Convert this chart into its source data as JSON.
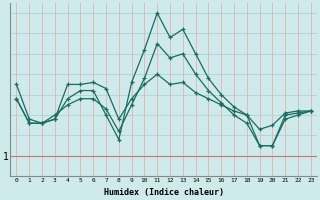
{
  "xlabel": "Humidex (Indice chaleur)",
  "bg_color": "#ceeaea",
  "line_color": "#1a6b60",
  "vgrid_color": "#e8b0b0",
  "hgrid_color": "#a8cece",
  "hline_color": "#cc7777",
  "hline_y": 1,
  "xlim": [
    -0.5,
    23.5
  ],
  "ylim": [
    0,
    8.5
  ],
  "xtick_labels": [
    "0",
    "1",
    "2",
    "3",
    "4",
    "5",
    "6",
    "7",
    "8",
    "9",
    "10",
    "11",
    "12",
    "13",
    "14",
    "15",
    "16",
    "17",
    "18",
    "19",
    "20",
    "21",
    "22",
    "23"
  ],
  "series1_x": [
    0,
    1,
    2,
    3,
    4,
    5,
    6,
    7,
    8,
    9,
    10,
    11,
    12,
    13,
    14,
    15,
    16,
    17,
    18,
    19,
    20,
    21,
    22,
    23
  ],
  "series1_y": [
    3.8,
    2.6,
    2.6,
    2.8,
    4.5,
    4.5,
    4.6,
    4.3,
    2.8,
    3.8,
    4.5,
    5.0,
    4.5,
    4.6,
    4.1,
    3.8,
    3.5,
    3.2,
    3.0,
    2.3,
    2.5,
    3.1,
    3.2,
    3.2
  ],
  "series2_x": [
    0,
    1,
    2,
    3,
    4,
    5,
    6,
    7,
    8,
    9,
    10,
    11,
    12,
    13,
    14,
    15,
    16,
    17,
    18,
    19,
    20,
    21,
    22,
    23
  ],
  "series2_y": [
    3.8,
    2.6,
    2.6,
    2.8,
    3.8,
    4.2,
    4.2,
    3.0,
    1.8,
    4.6,
    6.2,
    8.0,
    6.8,
    7.2,
    6.0,
    4.8,
    4.0,
    3.4,
    3.0,
    1.5,
    1.5,
    3.0,
    3.1,
    3.2
  ],
  "series3_x": [
    0,
    1,
    2,
    3,
    4,
    5,
    6,
    7,
    8,
    9,
    10,
    11,
    12,
    13,
    14,
    15,
    16,
    17,
    18,
    19,
    20,
    21,
    22,
    23
  ],
  "series3_y": [
    4.5,
    2.8,
    2.6,
    3.0,
    3.5,
    3.8,
    3.8,
    3.3,
    2.2,
    3.5,
    4.8,
    6.5,
    5.8,
    6.0,
    5.0,
    4.2,
    3.6,
    3.0,
    2.6,
    1.5,
    1.5,
    2.8,
    3.0,
    3.2
  ]
}
